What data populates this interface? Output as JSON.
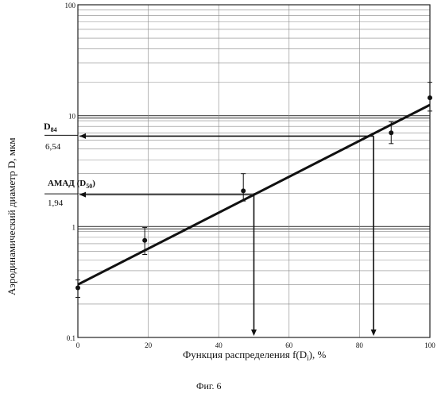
{
  "chart_data": {
    "type": "scatter",
    "title": "",
    "xlabel": "Функция распределения f(D",
    "xlabel_sub": "i",
    "xlabel_tail": "), %",
    "ylabel": "Аэродинамический диаметр D, мкм",
    "yscale": "log",
    "xlim": [
      0,
      100
    ],
    "ylim": [
      0.1,
      100
    ],
    "x_ticks": [
      "0",
      "20",
      "40",
      "60",
      "80",
      "100"
    ],
    "x_tick_values": [
      0,
      20,
      40,
      60,
      80,
      100
    ],
    "y_ticks": [
      "0.1",
      "1",
      "10",
      "100"
    ],
    "y_tick_values": [
      0.1,
      1,
      10,
      100
    ],
    "grid": true,
    "series": [
      {
        "x": [
          0,
          19,
          47,
          89,
          100
        ],
        "y": [
          0.28,
          0.75,
          2.1,
          7.0,
          14.5
        ],
        "yerr_low": [
          0.23,
          0.56,
          1.7,
          5.6,
          11
        ],
        "yerr_high": [
          0.33,
          0.98,
          3.0,
          8.8,
          20
        ]
      }
    ],
    "fit_line": {
      "x": [
        0,
        100
      ],
      "y": [
        0.3,
        12.5
      ]
    },
    "annotations": [
      {
        "label": "D",
        "sub": "84",
        "value_label": "6,54",
        "value": 6.54,
        "x": 84
      },
      {
        "label": "АМАД (D",
        "sub": "50",
        "tail": ")",
        "value_label": "1,94",
        "value": 1.94,
        "x": 50
      }
    ]
  },
  "caption": "Фиг. 6"
}
